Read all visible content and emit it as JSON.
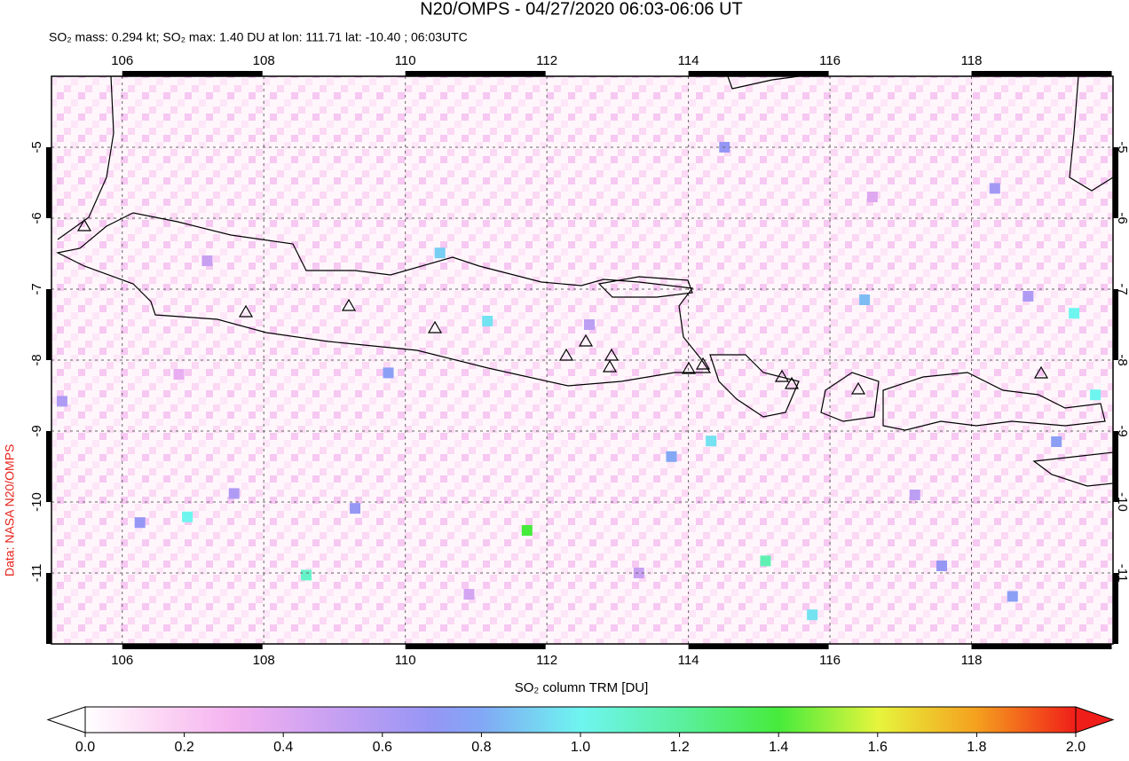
{
  "title": "N20/OMPS - 04/27/2020 06:03-06:06 UT",
  "subtitle": "SO₂ mass: 0.294 kt; SO₂ max: 1.40 DU at lon: 111.71 lat: -10.40 ; 06:03UTC",
  "credit": "Data: NASA N20/OMPS",
  "map": {
    "xlim": [
      105,
      120
    ],
    "ylim": [
      -12,
      -4
    ],
    "xticks": [
      106,
      108,
      110,
      112,
      114,
      116,
      118
    ],
    "yticks": [
      -5,
      -6,
      -7,
      -8,
      -9,
      -10,
      -11
    ],
    "pixels": [
      {
        "lon": 111.72,
        "lat": -10.4,
        "value": 1.4
      },
      {
        "lon": 106.92,
        "lat": -10.21,
        "value": 1.0
      },
      {
        "lon": 108.6,
        "lat": -11.03,
        "value": 1.1
      },
      {
        "lon": 115.09,
        "lat": -10.83,
        "value": 1.15
      },
      {
        "lon": 119.45,
        "lat": -7.34,
        "value": 1.0
      },
      {
        "lon": 119.75,
        "lat": -8.49,
        "value": 1.0
      },
      {
        "lon": 115.75,
        "lat": -11.59,
        "value": 0.95
      },
      {
        "lon": 116.49,
        "lat": -7.15,
        "value": 0.85
      },
      {
        "lon": 110.49,
        "lat": -6.49,
        "value": 0.9
      },
      {
        "lon": 111.16,
        "lat": -7.45,
        "value": 0.95
      },
      {
        "lon": 109.76,
        "lat": -8.18,
        "value": 0.75
      },
      {
        "lon": 114.32,
        "lat": -9.14,
        "value": 0.95
      },
      {
        "lon": 113.76,
        "lat": -9.36,
        "value": 0.8
      },
      {
        "lon": 106.25,
        "lat": -10.29,
        "value": 0.7
      },
      {
        "lon": 118.58,
        "lat": -11.33,
        "value": 0.75
      },
      {
        "lon": 107.58,
        "lat": -9.88,
        "value": 0.6
      },
      {
        "lon": 118.33,
        "lat": -5.58,
        "value": 0.65
      },
      {
        "lon": 119.2,
        "lat": -9.15,
        "value": 0.75
      },
      {
        "lon": 117.58,
        "lat": -10.9,
        "value": 0.7
      },
      {
        "lon": 109.29,
        "lat": -10.09,
        "value": 0.7
      },
      {
        "lon": 114.51,
        "lat": -5.0,
        "value": 0.7
      },
      {
        "lon": 105.15,
        "lat": -8.58,
        "value": 0.6
      },
      {
        "lon": 107.2,
        "lat": -6.6,
        "value": 0.5
      },
      {
        "lon": 112.6,
        "lat": -7.5,
        "value": 0.55
      },
      {
        "lon": 116.6,
        "lat": -5.7,
        "value": 0.4
      },
      {
        "lon": 118.8,
        "lat": -7.1,
        "value": 0.6
      },
      {
        "lon": 110.9,
        "lat": -11.3,
        "value": 0.45
      },
      {
        "lon": 113.3,
        "lat": -11.0,
        "value": 0.5
      },
      {
        "lon": 106.8,
        "lat": -8.2,
        "value": 0.35
      },
      {
        "lon": 117.2,
        "lat": -9.9,
        "value": 0.55
      }
    ]
  },
  "colorbar": {
    "label": "SO₂ column TRM [DU]",
    "range": [
      0,
      2
    ],
    "ticks": [
      {
        "value": 0,
        "label": "0.0"
      },
      {
        "value": 0.2,
        "label": "0.2"
      },
      {
        "value": 0.4,
        "label": "0.4"
      },
      {
        "value": 0.6,
        "label": "0.6"
      },
      {
        "value": 0.8,
        "label": "0.8"
      },
      {
        "value": 1,
        "label": "1.0"
      },
      {
        "value": 1.2,
        "label": "1.2"
      },
      {
        "value": 1.4,
        "label": "1.4"
      },
      {
        "value": 1.6,
        "label": "1.6"
      },
      {
        "value": 1.8,
        "label": "1.8"
      },
      {
        "value": 2,
        "label": "2.0"
      }
    ]
  }
}
